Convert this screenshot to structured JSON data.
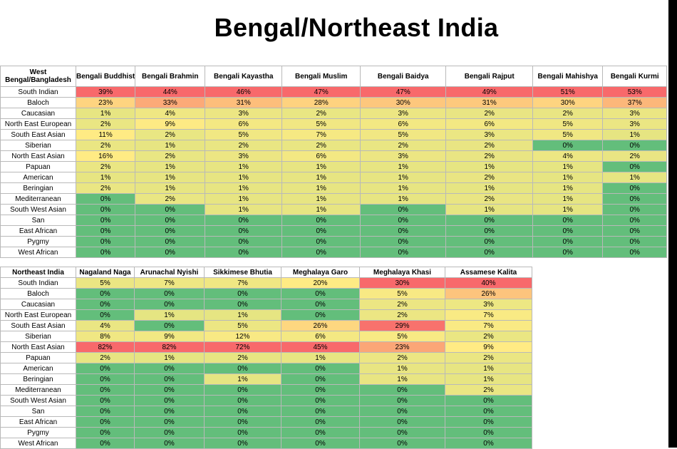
{
  "title": "Bengal/Northeast India",
  "table1": {
    "corner": "West Bengal/Bangladesh",
    "columns": [
      "Bengali Buddhist",
      "Bengali Brahmin",
      "Bengali Kayastha",
      "Bengali Muslim",
      "Bengali Baidya",
      "Bengali Rajput",
      "Bengali Mahishya",
      "Bengali Kurmi"
    ],
    "rows": [
      {
        "label": "South Indian",
        "values": [
          "39%",
          "44%",
          "46%",
          "47%",
          "47%",
          "49%",
          "51%",
          "53%"
        ]
      },
      {
        "label": "Baloch",
        "values": [
          "23%",
          "33%",
          "31%",
          "28%",
          "30%",
          "31%",
          "30%",
          "37%"
        ]
      },
      {
        "label": "Caucasian",
        "values": [
          "1%",
          "4%",
          "3%",
          "2%",
          "3%",
          "2%",
          "2%",
          "3%"
        ]
      },
      {
        "label": "North East European",
        "values": [
          "2%",
          "9%",
          "6%",
          "5%",
          "6%",
          "6%",
          "5%",
          "3%"
        ]
      },
      {
        "label": "South East Asian",
        "values": [
          "11%",
          "2%",
          "5%",
          "7%",
          "5%",
          "3%",
          "5%",
          "1%"
        ]
      },
      {
        "label": "Siberian",
        "values": [
          "2%",
          "1%",
          "2%",
          "2%",
          "2%",
          "2%",
          "0%",
          "0%"
        ]
      },
      {
        "label": "North East Asian",
        "values": [
          "16%",
          "2%",
          "3%",
          "6%",
          "3%",
          "2%",
          "4%",
          "2%"
        ]
      },
      {
        "label": "Papuan",
        "values": [
          "2%",
          "1%",
          "1%",
          "1%",
          "1%",
          "1%",
          "1%",
          "0%"
        ]
      },
      {
        "label": "American",
        "values": [
          "1%",
          "1%",
          "1%",
          "1%",
          "1%",
          "2%",
          "1%",
          "1%"
        ]
      },
      {
        "label": "Beringian",
        "values": [
          "2%",
          "1%",
          "1%",
          "1%",
          "1%",
          "1%",
          "1%",
          "0%"
        ]
      },
      {
        "label": "Mediterranean",
        "values": [
          "0%",
          "2%",
          "1%",
          "1%",
          "1%",
          "2%",
          "1%",
          "0%"
        ]
      },
      {
        "label": "South West Asian",
        "values": [
          "0%",
          "0%",
          "1%",
          "1%",
          "0%",
          "1%",
          "1%",
          "0%"
        ]
      },
      {
        "label": "San",
        "values": [
          "0%",
          "0%",
          "0%",
          "0%",
          "0%",
          "0%",
          "0%",
          "0%"
        ]
      },
      {
        "label": "East African",
        "values": [
          "0%",
          "0%",
          "0%",
          "0%",
          "0%",
          "0%",
          "0%",
          "0%"
        ]
      },
      {
        "label": "Pygmy",
        "values": [
          "0%",
          "0%",
          "0%",
          "0%",
          "0%",
          "0%",
          "0%",
          "0%"
        ]
      },
      {
        "label": "West African",
        "values": [
          "0%",
          "0%",
          "0%",
          "0%",
          "0%",
          "0%",
          "0%",
          "0%"
        ]
      }
    ]
  },
  "table2": {
    "corner": "Northeast India",
    "columns": [
      "Nagaland Naga",
      "Arunachal Nyishi",
      "Sikkimese Bhutia",
      "Meghalaya Garo",
      "Meghalaya Khasi",
      "Assamese Kalita"
    ],
    "rows": [
      {
        "label": "South Indian",
        "values": [
          "5%",
          "7%",
          "7%",
          "20%",
          "30%",
          "40%"
        ]
      },
      {
        "label": "Baloch",
        "values": [
          "0%",
          "0%",
          "0%",
          "0%",
          "5%",
          "26%"
        ]
      },
      {
        "label": "Caucasian",
        "values": [
          "0%",
          "0%",
          "0%",
          "0%",
          "2%",
          "3%"
        ]
      },
      {
        "label": "North East European",
        "values": [
          "0%",
          "1%",
          "1%",
          "0%",
          "2%",
          "7%"
        ]
      },
      {
        "label": "South East Asian",
        "values": [
          "4%",
          "0%",
          "5%",
          "26%",
          "29%",
          "7%"
        ]
      },
      {
        "label": "Siberian",
        "values": [
          "8%",
          "9%",
          "12%",
          "6%",
          "5%",
          "2%"
        ]
      },
      {
        "label": "North East Asian",
        "values": [
          "82%",
          "82%",
          "72%",
          "45%",
          "23%",
          "9%"
        ]
      },
      {
        "label": "Papuan",
        "values": [
          "2%",
          "1%",
          "2%",
          "1%",
          "2%",
          "2%"
        ]
      },
      {
        "label": "American",
        "values": [
          "0%",
          "0%",
          "0%",
          "0%",
          "1%",
          "1%"
        ]
      },
      {
        "label": "Beringian",
        "values": [
          "0%",
          "0%",
          "1%",
          "0%",
          "1%",
          "1%"
        ]
      },
      {
        "label": "Mediterranean",
        "values": [
          "0%",
          "0%",
          "0%",
          "0%",
          "0%",
          "2%"
        ]
      },
      {
        "label": "South West Asian",
        "values": [
          "0%",
          "0%",
          "0%",
          "0%",
          "0%",
          "0%"
        ]
      },
      {
        "label": "San",
        "values": [
          "0%",
          "0%",
          "0%",
          "0%",
          "0%",
          "0%"
        ]
      },
      {
        "label": "East African",
        "values": [
          "0%",
          "0%",
          "0%",
          "0%",
          "0%",
          "0%"
        ]
      },
      {
        "label": "Pygmy",
        "values": [
          "0%",
          "0%",
          "0%",
          "0%",
          "0%",
          "0%"
        ]
      },
      {
        "label": "West African",
        "values": [
          "0%",
          "0%",
          "0%",
          "0%",
          "0%",
          "0%"
        ]
      }
    ]
  },
  "colors": {
    "red": "#f8696b",
    "orange": "#f9a46f",
    "yellow": "#ffeb84",
    "light_green": "#c3dc80",
    "green": "#63be7b",
    "border": "#b9b9b9"
  }
}
